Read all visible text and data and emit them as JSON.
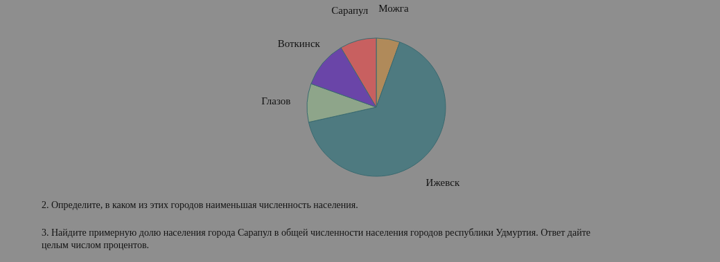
{
  "chart_data": {
    "type": "pie",
    "categories": [
      "Можга",
      "Ижевск",
      "Глазов",
      "Воткинск",
      "Сарапул"
    ],
    "values": [
      5.5,
      66,
      9,
      11,
      8.5
    ],
    "colors": [
      "#b08a5a",
      "#4e7a80",
      "#8ea58a",
      "#6a45a8",
      "#c86060"
    ],
    "annotations": [
      "2.  Определите, в каком из этих городов наименьшая численность населения.",
      "3.  Найдите примерную долю населения города Сарапул в общей численности населения городов республики Удмуртия. Ответ дайте целым числом процентов."
    ]
  }
}
